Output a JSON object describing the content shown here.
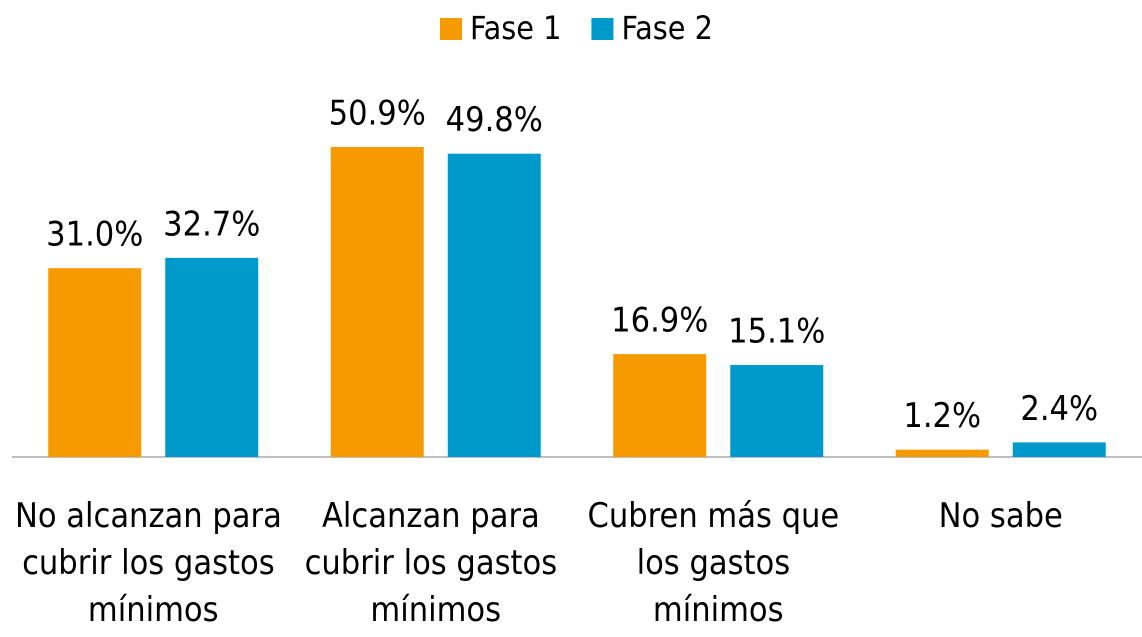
{
  "chart_data": {
    "type": "bar",
    "categories": [
      "No alcanzan para cubrir los gastos mínimos",
      "Alcanzan para cubrir los gastos mínimos",
      "Cubren más que los gastos mínimos",
      "No sabe"
    ],
    "series": [
      {
        "name": "Fase 1",
        "color": "#F59A00",
        "values": [
          31.0,
          50.9,
          16.9,
          1.2
        ],
        "value_labels": [
          "31.0%",
          "50.9%",
          "16.9%",
          "1.2%"
        ]
      },
      {
        "name": "Fase 2",
        "color": "#0099CC",
        "values": [
          32.7,
          49.8,
          15.1,
          2.4
        ],
        "value_labels": [
          "32.7%",
          "49.8%",
          "15.1%",
          "2.4%"
        ]
      }
    ],
    "legend": "top"
  }
}
